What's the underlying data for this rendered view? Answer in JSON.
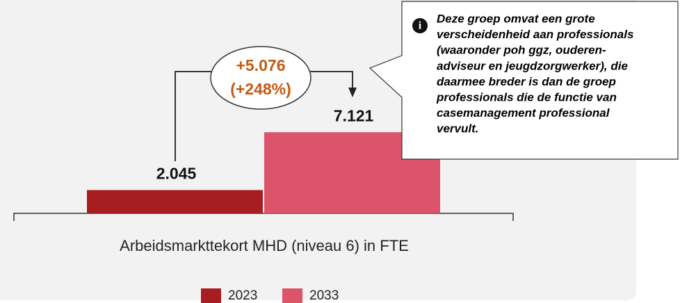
{
  "chart_data": {
    "type": "bar",
    "categories": [
      "Arbeidsmarkttekort MHD (niveau 6) in FTE"
    ],
    "series": [
      {
        "name": "2023",
        "color": "#a61e22",
        "values": [
          2045
        ],
        "value_labels": [
          "2.045"
        ]
      },
      {
        "name": "2033",
        "color": "#dc546a",
        "values": [
          7121
        ],
        "value_labels": [
          "7.121"
        ]
      }
    ],
    "ylim": [
      0,
      10000
    ],
    "annotations": {
      "difference": "+5.076",
      "percent": "(+248%)",
      "note": [
        "Deze groep omvat een grote",
        "verscheidenheid aan professionals",
        "(waaronder poh ggz, ouderen-",
        "adviseur en jeugdzorgwerker), die",
        "daarmee breder is dan de groep",
        "professionals die de functie van",
        "casemanagement professional",
        "vervult."
      ]
    },
    "legend": "bottom"
  }
}
